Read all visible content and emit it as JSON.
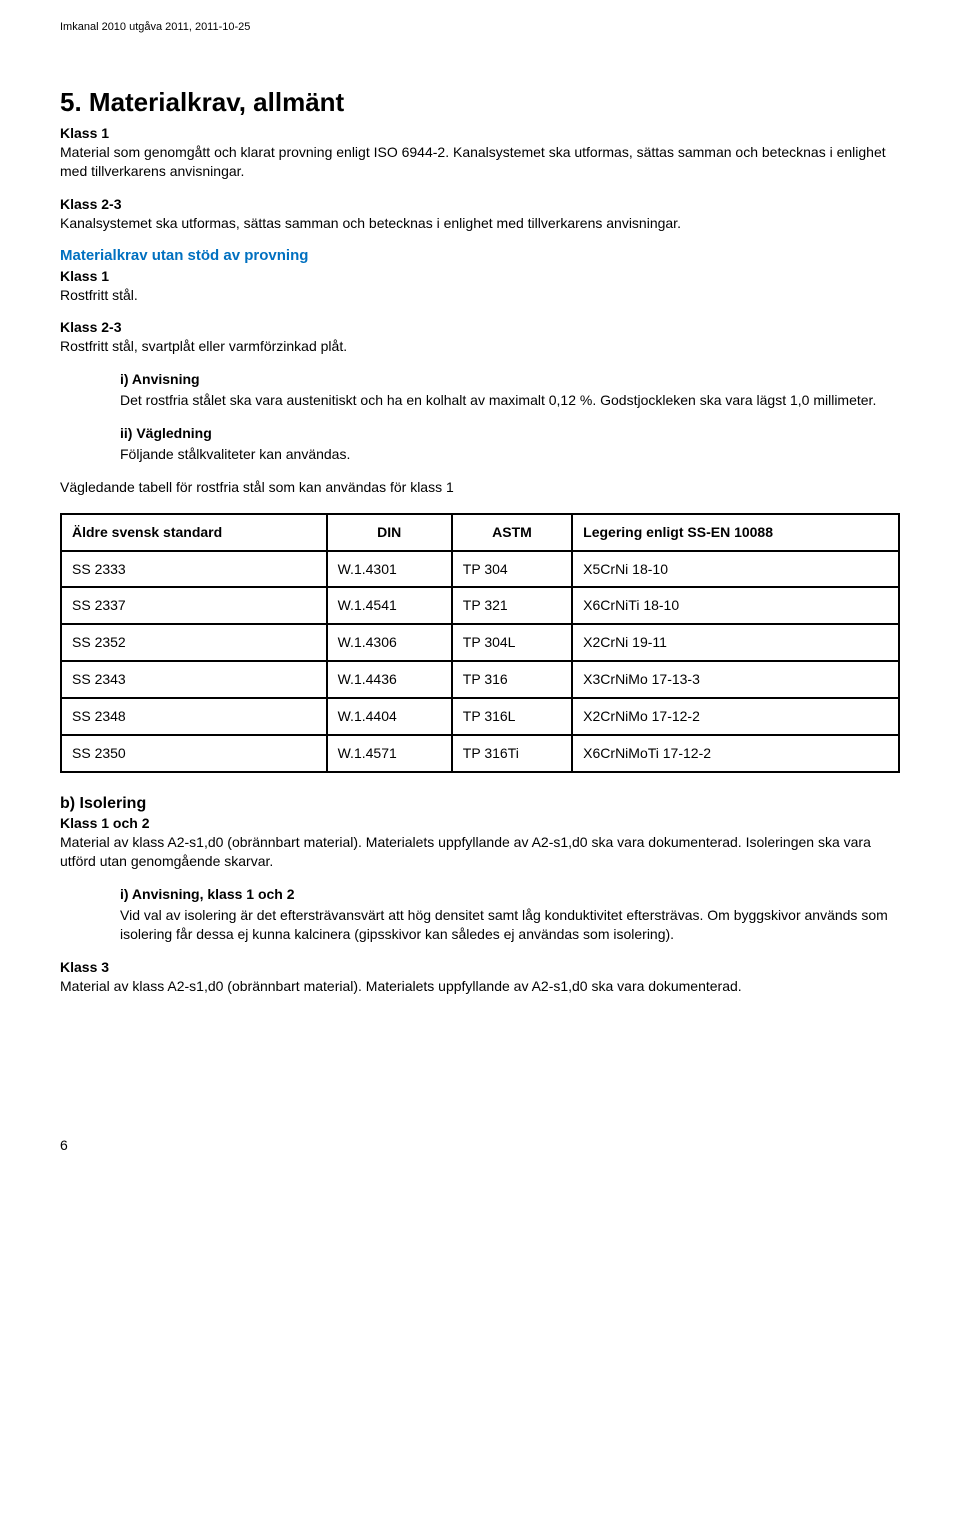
{
  "header_note": "Imkanal 2010 utgåva 2011, 2011-10-25",
  "title": "5. Materialkrav, allmänt",
  "klass1_label": "Klass 1",
  "klass1_text": "Material som genomgått och klarat provning enligt ISO 6944-2. Kanalsystemet ska utformas, sättas samman och betecknas i enlighet med tillverkarens anvisningar.",
  "klass23_label": "Klass 2-3",
  "klass23_text": "Kanalsystemet ska utformas, sättas samman och betecknas i enlighet med tillverkarens anvisningar.",
  "sub_heading": "Materialkrav utan stöd av provning",
  "mk_klass1_label": "Klass 1",
  "mk_klass1_text": "Rostfritt stål.",
  "mk_klass23_label": "Klass 2-3",
  "mk_klass23_text": "Rostfritt stål, svartplåt eller varmförzinkad plåt.",
  "anvisning_label": "i) Anvisning",
  "anvisning_text": "Det rostfria stålet ska vara austenitiskt och ha en kolhalt av maximalt 0,12 %. Godstjockleken ska vara lägst 1,0 millimeter.",
  "vagledning_label": "ii) Vägledning",
  "vagledning_text": "Följande stålkvaliteter kan användas.",
  "table_caption": "Vägledande tabell för rostfria stål som kan användas för klass 1",
  "table": {
    "headers": [
      "Äldre svensk standard",
      "DIN",
      "ASTM",
      "Legering enligt SS-EN 10088"
    ],
    "rows": [
      [
        "SS 2333",
        "W.1.4301",
        "TP 304",
        "X5CrNi 18-10"
      ],
      [
        "SS 2337",
        "W.1.4541",
        "TP 321",
        "X6CrNiTi 18-10"
      ],
      [
        "SS 2352",
        "W.1.4306",
        "TP 304L",
        "X2CrNi 19-11"
      ],
      [
        "SS 2343",
        "W.1.4436",
        "TP 316",
        "X3CrNiMo 17-13-3"
      ],
      [
        "SS 2348",
        "W.1.4404",
        "TP 316L",
        "X2CrNiMo 17-12-2"
      ],
      [
        "SS 2350",
        "W.1.4571",
        "TP 316Ti",
        "X6CrNiMoTi 17-12-2"
      ]
    ]
  },
  "isolering_heading": "b) Isolering",
  "iso_klass12_label": "Klass 1 och 2",
  "iso_klass12_text": "Material av klass A2-s1,d0 (obrännbart material). Materialets uppfyllande av A2-s1,d0 ska vara dokumenterad. Isoleringen ska vara utförd utan genomgående skarvar.",
  "iso_anvisning_label": "i) Anvisning, klass 1 och 2",
  "iso_anvisning_text": "Vid val av isolering är det eftersträvansvärt att hög densitet samt låg konduktivitet eftersträvas. Om byggskivor används som isolering får dessa ej kunna kalcinera (gipsskivor kan således ej användas som isolering).",
  "iso_klass3_label": "Klass 3",
  "iso_klass3_text": "Material av klass A2-s1,d0 (obrännbart material). Materialets uppfyllande av A2-s1,d0 ska vara dokumenterad.",
  "page_number": "6"
}
